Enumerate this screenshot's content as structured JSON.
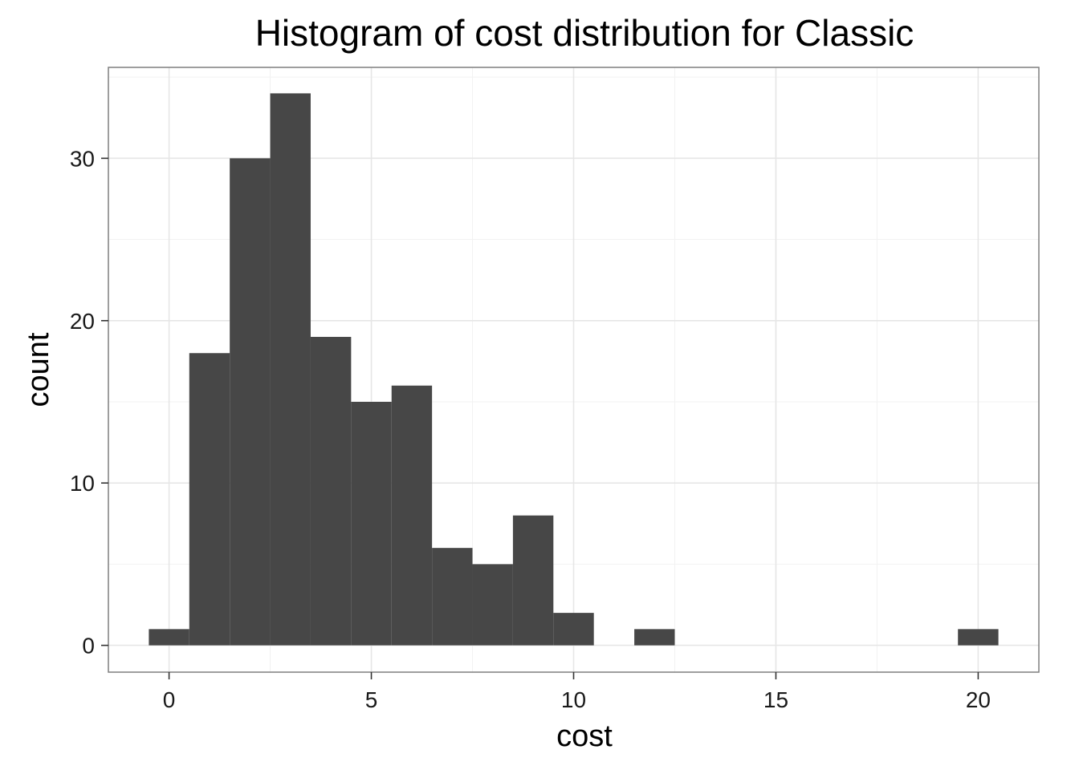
{
  "chart_data": {
    "type": "bar",
    "title": "Histogram of cost distribution for Classic",
    "xlabel": "cost",
    "ylabel": "count",
    "bin_width": 1,
    "bin_centers": [
      0,
      1,
      2,
      3,
      4,
      5,
      6,
      7,
      8,
      9,
      10,
      11,
      12,
      13,
      14,
      15,
      16,
      17,
      18,
      19,
      20
    ],
    "values": [
      1,
      18,
      30,
      34,
      19,
      15,
      16,
      6,
      5,
      8,
      2,
      0,
      1,
      0,
      0,
      0,
      0,
      0,
      0,
      0,
      1
    ],
    "xlim": [
      -1.5,
      21.5
    ],
    "ylim": [
      -1.65,
      35.6
    ],
    "x_ticks": [
      0,
      5,
      10,
      15,
      20
    ],
    "x_tick_labels": [
      "0",
      "5",
      "10",
      "15",
      "20"
    ],
    "y_ticks": [
      0,
      10,
      20,
      30
    ],
    "y_tick_labels": [
      "0",
      "10",
      "20",
      "30"
    ],
    "grid": true,
    "bar_color": "#474747",
    "panel_background": "#ffffff"
  }
}
